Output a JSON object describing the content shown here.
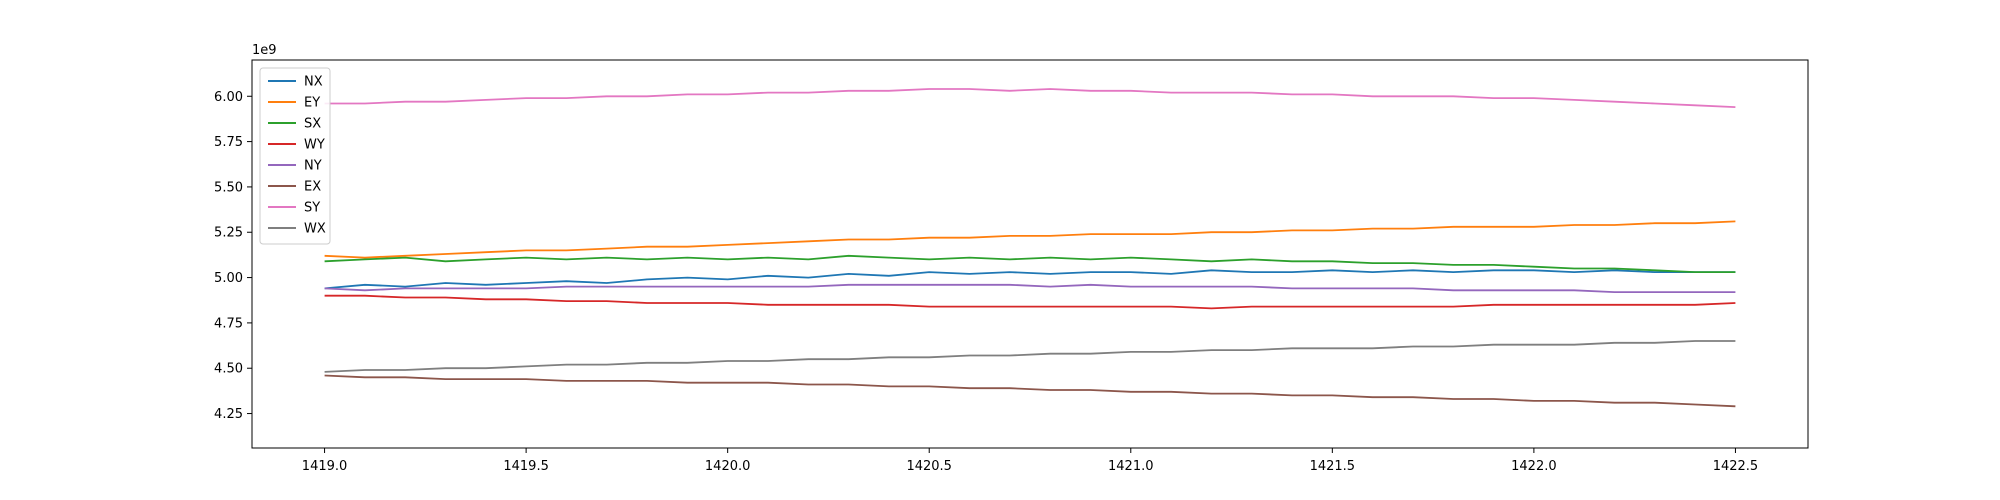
{
  "chart_data": {
    "type": "line",
    "title": "",
    "xlabel": "",
    "ylabel": "",
    "y_offset_text": "1e9",
    "xlim": [
      1418.82,
      1422.68
    ],
    "ylim": [
      4.06,
      6.2
    ],
    "x_ticks": [
      1419.0,
      1419.5,
      1420.0,
      1420.5,
      1421.0,
      1421.5,
      1422.0,
      1422.5
    ],
    "x_tick_labels": [
      "1419.0",
      "1419.5",
      "1420.0",
      "1420.5",
      "1421.0",
      "1421.5",
      "1422.0",
      "1422.5"
    ],
    "y_ticks": [
      4.25,
      4.5,
      4.75,
      5.0,
      5.25,
      5.5,
      5.75,
      6.0
    ],
    "y_tick_labels": [
      "4.25",
      "4.50",
      "4.75",
      "5.00",
      "5.25",
      "5.50",
      "5.75",
      "6.00"
    ],
    "grid": false,
    "legend_position": "upper-left",
    "x": [
      1419.0,
      1419.1,
      1419.2,
      1419.3,
      1419.4,
      1419.5,
      1419.6,
      1419.7,
      1419.8,
      1419.9,
      1420.0,
      1420.1,
      1420.2,
      1420.3,
      1420.4,
      1420.5,
      1420.6,
      1420.7,
      1420.8,
      1420.9,
      1421.0,
      1421.1,
      1421.2,
      1421.3,
      1421.4,
      1421.5,
      1421.6,
      1421.7,
      1421.8,
      1421.9,
      1422.0,
      1422.1,
      1422.2,
      1422.3,
      1422.4,
      1422.5
    ],
    "series": [
      {
        "name": "NX",
        "color": "#1f77b4",
        "values": [
          4.94,
          4.96,
          4.95,
          4.97,
          4.96,
          4.97,
          4.98,
          4.97,
          4.99,
          5.0,
          4.99,
          5.01,
          5.0,
          5.02,
          5.01,
          5.03,
          5.02,
          5.03,
          5.02,
          5.03,
          5.03,
          5.02,
          5.04,
          5.03,
          5.03,
          5.04,
          5.03,
          5.04,
          5.03,
          5.04,
          5.04,
          5.03,
          5.04,
          5.03,
          5.03,
          5.03
        ]
      },
      {
        "name": "EY",
        "color": "#ff7f0e",
        "values": [
          5.12,
          5.11,
          5.12,
          5.13,
          5.14,
          5.15,
          5.15,
          5.16,
          5.17,
          5.17,
          5.18,
          5.19,
          5.2,
          5.21,
          5.21,
          5.22,
          5.22,
          5.23,
          5.23,
          5.24,
          5.24,
          5.24,
          5.25,
          5.25,
          5.26,
          5.26,
          5.27,
          5.27,
          5.28,
          5.28,
          5.28,
          5.29,
          5.29,
          5.3,
          5.3,
          5.31
        ]
      },
      {
        "name": "SX",
        "color": "#2ca02c",
        "values": [
          5.09,
          5.1,
          5.11,
          5.09,
          5.1,
          5.11,
          5.1,
          5.11,
          5.1,
          5.11,
          5.1,
          5.11,
          5.1,
          5.12,
          5.11,
          5.1,
          5.11,
          5.1,
          5.11,
          5.1,
          5.11,
          5.1,
          5.09,
          5.1,
          5.09,
          5.09,
          5.08,
          5.08,
          5.07,
          5.07,
          5.06,
          5.05,
          5.05,
          5.04,
          5.03,
          5.03
        ]
      },
      {
        "name": "WY",
        "color": "#d62728",
        "values": [
          4.9,
          4.9,
          4.89,
          4.89,
          4.88,
          4.88,
          4.87,
          4.87,
          4.86,
          4.86,
          4.86,
          4.85,
          4.85,
          4.85,
          4.85,
          4.84,
          4.84,
          4.84,
          4.84,
          4.84,
          4.84,
          4.84,
          4.83,
          4.84,
          4.84,
          4.84,
          4.84,
          4.84,
          4.84,
          4.85,
          4.85,
          4.85,
          4.85,
          4.85,
          4.85,
          4.86
        ]
      },
      {
        "name": "NY",
        "color": "#9467bd",
        "values": [
          4.94,
          4.93,
          4.94,
          4.94,
          4.94,
          4.94,
          4.95,
          4.95,
          4.95,
          4.95,
          4.95,
          4.95,
          4.95,
          4.96,
          4.96,
          4.96,
          4.96,
          4.96,
          4.95,
          4.96,
          4.95,
          4.95,
          4.95,
          4.95,
          4.94,
          4.94,
          4.94,
          4.94,
          4.93,
          4.93,
          4.93,
          4.93,
          4.92,
          4.92,
          4.92,
          4.92
        ]
      },
      {
        "name": "EX",
        "color": "#8c564b",
        "values": [
          4.46,
          4.45,
          4.45,
          4.44,
          4.44,
          4.44,
          4.43,
          4.43,
          4.43,
          4.42,
          4.42,
          4.42,
          4.41,
          4.41,
          4.4,
          4.4,
          4.39,
          4.39,
          4.38,
          4.38,
          4.37,
          4.37,
          4.36,
          4.36,
          4.35,
          4.35,
          4.34,
          4.34,
          4.33,
          4.33,
          4.32,
          4.32,
          4.31,
          4.31,
          4.3,
          4.29
        ]
      },
      {
        "name": "SY",
        "color": "#e377c2",
        "values": [
          5.96,
          5.96,
          5.97,
          5.97,
          5.98,
          5.99,
          5.99,
          6.0,
          6.0,
          6.01,
          6.01,
          6.02,
          6.02,
          6.03,
          6.03,
          6.04,
          6.04,
          6.03,
          6.04,
          6.03,
          6.03,
          6.02,
          6.02,
          6.02,
          6.01,
          6.01,
          6.0,
          6.0,
          6.0,
          5.99,
          5.99,
          5.98,
          5.97,
          5.96,
          5.95,
          5.94
        ]
      },
      {
        "name": "WX",
        "color": "#7f7f7f",
        "values": [
          4.48,
          4.49,
          4.49,
          4.5,
          4.5,
          4.51,
          4.52,
          4.52,
          4.53,
          4.53,
          4.54,
          4.54,
          4.55,
          4.55,
          4.56,
          4.56,
          4.57,
          4.57,
          4.58,
          4.58,
          4.59,
          4.59,
          4.6,
          4.6,
          4.61,
          4.61,
          4.61,
          4.62,
          4.62,
          4.63,
          4.63,
          4.63,
          4.64,
          4.64,
          4.65,
          4.65
        ]
      }
    ]
  }
}
